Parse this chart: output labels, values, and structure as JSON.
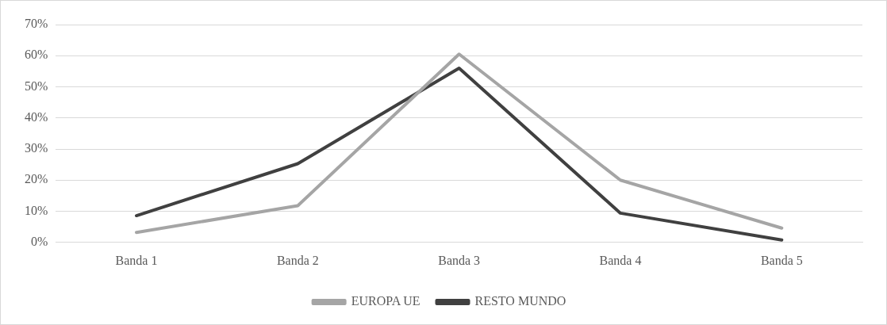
{
  "chart_data": {
    "type": "line",
    "categories": [
      "Banda 1",
      "Banda 2",
      "Banda 3",
      "Banda 4",
      "Banda 5"
    ],
    "series": [
      {
        "name": "EUROPA UE",
        "color": "#a5a5a5",
        "values": [
          3.2,
          11.8,
          60.5,
          20,
          4.6
        ]
      },
      {
        "name": "RESTO MUNDO",
        "color": "#404040",
        "values": [
          8.6,
          25.3,
          56,
          9.4,
          0.8
        ]
      }
    ],
    "ylim": [
      0,
      70
    ],
    "yticks": [
      {
        "value": 0,
        "label": "0%"
      },
      {
        "value": 10,
        "label": "10%"
      },
      {
        "value": 20,
        "label": "20%"
      },
      {
        "value": 30,
        "label": "30%"
      },
      {
        "value": 40,
        "label": "40%"
      },
      {
        "value": 50,
        "label": "50%"
      },
      {
        "value": 60,
        "label": "60%"
      },
      {
        "value": 70,
        "label": "70%"
      }
    ],
    "grid": "y",
    "legend": "bottom",
    "marker": "none",
    "line_style": "solid"
  }
}
